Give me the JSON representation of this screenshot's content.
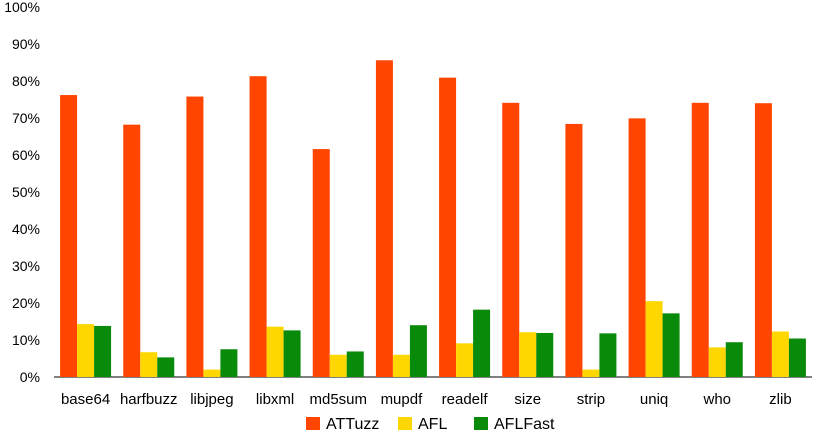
{
  "chart_data": {
    "type": "bar",
    "categories": [
      "base64",
      "harfbuzz",
      "libjpeg",
      "libxml",
      "md5sum",
      "mupdf",
      "readelf",
      "size",
      "strip",
      "uniq",
      "who",
      "zlib"
    ],
    "series": [
      {
        "name": "ATTuzz",
        "color": "#ff4500",
        "values": [
          76.2,
          68.2,
          75.8,
          81.3,
          61.6,
          85.6,
          80.9,
          74.1,
          68.4,
          69.9,
          74.1,
          74.0
        ]
      },
      {
        "name": "AFL",
        "color": "#ffd700",
        "values": [
          14.3,
          6.7,
          2.0,
          13.6,
          6.0,
          6.0,
          9.1,
          12.1,
          2.0,
          20.5,
          8.0,
          12.3
        ]
      },
      {
        "name": "AFLFast",
        "color": "#0a8a0a",
        "values": [
          13.8,
          5.3,
          7.5,
          12.6,
          6.9,
          14.0,
          18.2,
          11.9,
          11.8,
          17.2,
          9.4,
          10.4
        ]
      }
    ],
    "yticks": [
      "0%",
      "10%",
      "20%",
      "30%",
      "40%",
      "50%",
      "60%",
      "70%",
      "80%",
      "90%",
      "100%"
    ],
    "ylim": [
      0,
      100
    ],
    "grid": false,
    "legend": "bottom"
  }
}
